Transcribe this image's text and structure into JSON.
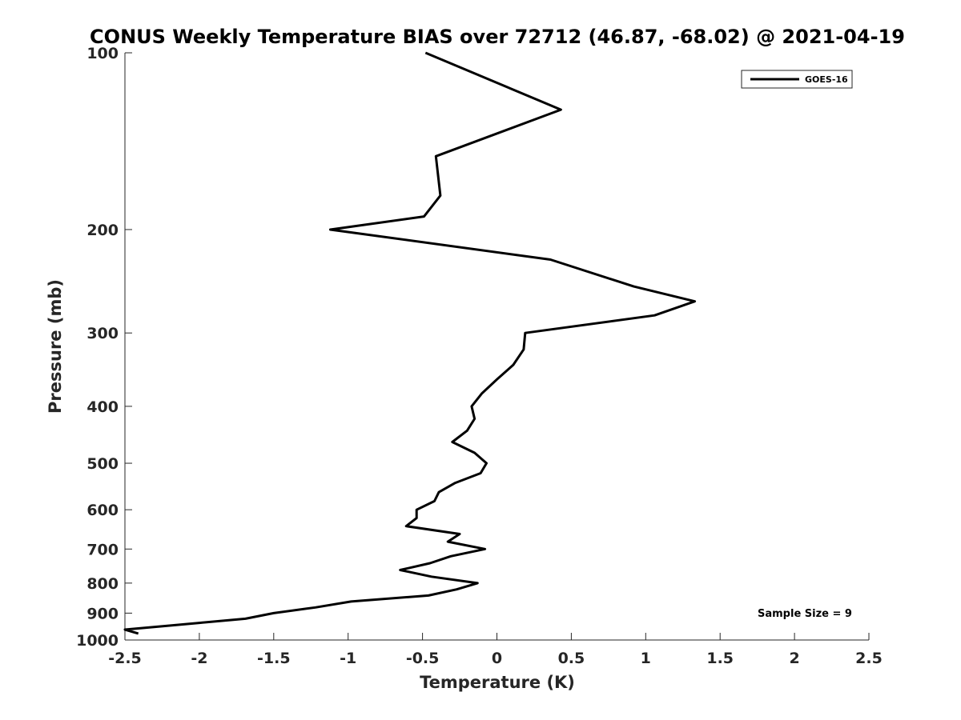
{
  "chart_data": {
    "type": "line",
    "title": "CONUS Weekly Temperature BIAS over 72712 (46.87, -68.02) @ 2021-04-19",
    "xlabel": "Temperature (K)",
    "ylabel": "Pressure (mb)",
    "xlim": [
      -2.5,
      2.5
    ],
    "ylim": [
      100,
      1000
    ],
    "y_scale": "log",
    "y_reversed": true,
    "grid": false,
    "x_ticks": [
      -2.5,
      -2,
      -1.5,
      -1,
      -0.5,
      0,
      0.5,
      1,
      1.5,
      2,
      2.5
    ],
    "x_tick_labels": [
      "-2.5",
      "-2",
      "-1.5",
      "-1",
      "-0.5",
      "0",
      "0.5",
      "1",
      "1.5",
      "2",
      "2.5"
    ],
    "y_ticks": [
      100,
      200,
      300,
      400,
      500,
      600,
      700,
      800,
      900,
      1000
    ],
    "y_tick_labels": [
      "100",
      "200",
      "300",
      "400",
      "500",
      "600",
      "700",
      "800",
      "900",
      "1000"
    ],
    "legend_position": "top-right",
    "series": [
      {
        "name": "GOES-16",
        "color": "#000000",
        "points": [
          [
            -0.48,
            100
          ],
          [
            0.43,
            125
          ],
          [
            -0.41,
            150
          ],
          [
            -0.38,
            175
          ],
          [
            -0.49,
            190
          ],
          [
            -1.12,
            200
          ],
          [
            0.36,
            225
          ],
          [
            0.92,
            250
          ],
          [
            1.33,
            265
          ],
          [
            1.06,
            280
          ],
          [
            0.19,
            300
          ],
          [
            0.18,
            320
          ],
          [
            0.11,
            340
          ],
          [
            0.0,
            360
          ],
          [
            -0.1,
            380
          ],
          [
            -0.17,
            400
          ],
          [
            -0.15,
            420
          ],
          [
            -0.2,
            440
          ],
          [
            -0.3,
            460
          ],
          [
            -0.15,
            480
          ],
          [
            -0.07,
            500
          ],
          [
            -0.11,
            520
          ],
          [
            -0.28,
            540
          ],
          [
            -0.39,
            560
          ],
          [
            -0.42,
            580
          ],
          [
            -0.54,
            600
          ],
          [
            -0.54,
            620
          ],
          [
            -0.61,
            640
          ],
          [
            -0.25,
            660
          ],
          [
            -0.33,
            680
          ],
          [
            -0.08,
            700
          ],
          [
            -0.31,
            720
          ],
          [
            -0.45,
            740
          ],
          [
            -0.65,
            760
          ],
          [
            -0.44,
            780
          ],
          [
            -0.13,
            800
          ],
          [
            -0.27,
            820
          ],
          [
            -0.46,
            840
          ],
          [
            -0.98,
            860
          ],
          [
            -1.22,
            880
          ],
          [
            -1.5,
            900
          ],
          [
            -1.69,
            920
          ],
          [
            -2.0,
            935
          ],
          [
            -2.2,
            945
          ],
          [
            -2.5,
            960
          ],
          [
            -2.41,
            975
          ]
        ]
      }
    ],
    "annotations": [
      {
        "text": "Sample Size = 9",
        "position": "bottom-right"
      }
    ]
  }
}
